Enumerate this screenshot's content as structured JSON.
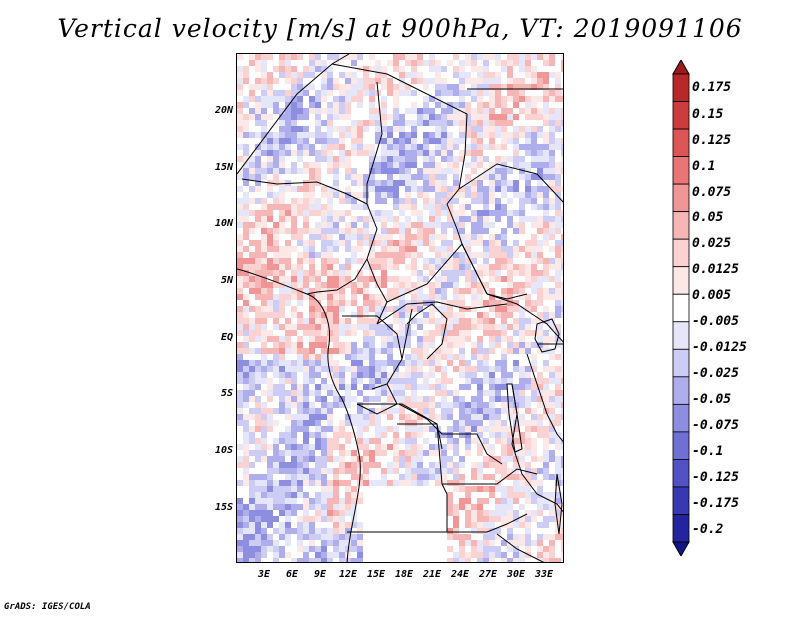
{
  "title": "Vertical velocity [m/s] at 900hPa, VT: 2019091106",
  "footer": "GrADS: IGES/COLA",
  "map": {
    "lat_ticks": [
      "20N",
      "15N",
      "10N",
      "5N",
      "EQ",
      "5S",
      "10S",
      "15S"
    ],
    "lon_ticks": [
      "3E",
      "6E",
      "9E",
      "12E",
      "15E",
      "18E",
      "21E",
      "24E",
      "27E",
      "30E",
      "33E"
    ],
    "lon_range": [
      0,
      35
    ],
    "lat_range": [
      -20,
      25
    ]
  },
  "colorbar": {
    "labels": [
      "0.175",
      "0.15",
      "0.125",
      "0.1",
      "0.075",
      "0.05",
      "0.025",
      "0.0125",
      "0.005",
      "-0.005",
      "-0.0125",
      "-0.025",
      "-0.05",
      "-0.075",
      "-0.1",
      "-0.125",
      "-0.175",
      "-0.2"
    ],
    "colors": [
      "#a01818",
      "#b82828",
      "#cc3c3c",
      "#dc5656",
      "#e87676",
      "#f09696",
      "#f6b6b6",
      "#fad2d2",
      "#fde8e8",
      "#ffffff",
      "#e6e6fa",
      "#ccccf4",
      "#aeaeec",
      "#8e8ee0",
      "#7070d4",
      "#5252c4",
      "#3838b0",
      "#24249c",
      "#14148a"
    ]
  }
}
